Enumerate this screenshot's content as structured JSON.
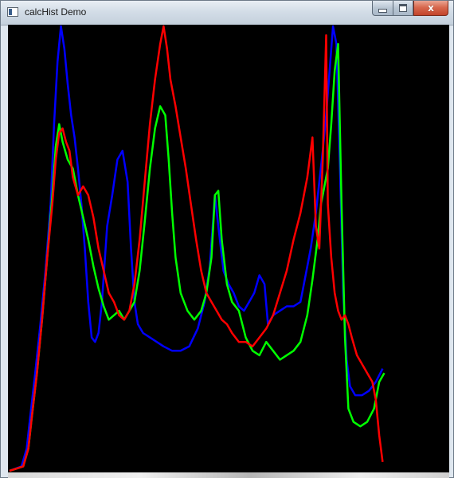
{
  "window": {
    "title": "calcHist Demo",
    "icon": "app-window-icon"
  },
  "caption_buttons": {
    "minimize_icon": "minimize-icon",
    "maximize_icon": "maximize-icon",
    "close_icon": "close-icon",
    "close_glyph": "x"
  },
  "colors": {
    "blue": "#0000ff",
    "green": "#00ff00",
    "red": "#ff0000",
    "background": "#000000"
  },
  "chart_data": {
    "type": "line",
    "title": "",
    "xlabel": "",
    "ylabel": "",
    "xlim": [
      0,
      256
    ],
    "ylim": [
      0,
      1
    ],
    "grid": false,
    "legend": "none",
    "series": [
      {
        "color": "#0000ff",
        "points": [
          [
            0,
            0
          ],
          [
            7,
            0.01
          ],
          [
            10,
            0.05
          ],
          [
            12,
            0.12
          ],
          [
            15,
            0.22
          ],
          [
            18,
            0.33
          ],
          [
            21,
            0.45
          ],
          [
            24,
            0.6
          ],
          [
            26,
            0.78
          ],
          [
            28,
            0.92
          ],
          [
            30,
            1.0
          ],
          [
            32,
            0.95
          ],
          [
            34,
            0.87
          ],
          [
            36,
            0.8
          ],
          [
            38,
            0.75
          ],
          [
            40,
            0.68
          ],
          [
            42,
            0.6
          ],
          [
            44,
            0.5
          ],
          [
            46,
            0.38
          ],
          [
            48,
            0.3
          ],
          [
            50,
            0.29
          ],
          [
            52,
            0.31
          ],
          [
            54,
            0.38
          ],
          [
            57,
            0.55
          ],
          [
            60,
            0.62
          ],
          [
            63,
            0.7
          ],
          [
            66,
            0.72
          ],
          [
            69,
            0.65
          ],
          [
            71,
            0.5
          ],
          [
            73,
            0.38
          ],
          [
            75,
            0.33
          ],
          [
            78,
            0.31
          ],
          [
            82,
            0.3
          ],
          [
            86,
            0.29
          ],
          [
            90,
            0.28
          ],
          [
            95,
            0.27
          ],
          [
            100,
            0.27
          ],
          [
            105,
            0.28
          ],
          [
            110,
            0.32
          ],
          [
            114,
            0.38
          ],
          [
            117,
            0.46
          ],
          [
            120,
            0.62
          ],
          [
            122,
            0.55
          ],
          [
            125,
            0.45
          ],
          [
            128,
            0.42
          ],
          [
            131,
            0.4
          ],
          [
            134,
            0.37
          ],
          [
            137,
            0.36
          ],
          [
            140,
            0.38
          ],
          [
            143,
            0.4
          ],
          [
            146,
            0.44
          ],
          [
            149,
            0.42
          ],
          [
            151,
            0.33
          ],
          [
            154,
            0.35
          ],
          [
            158,
            0.36
          ],
          [
            162,
            0.37
          ],
          [
            166,
            0.37
          ],
          [
            170,
            0.38
          ],
          [
            173,
            0.44
          ],
          [
            176,
            0.5
          ],
          [
            179,
            0.58
          ],
          [
            181,
            0.65
          ],
          [
            183,
            0.72
          ],
          [
            185,
            0.8
          ],
          [
            187,
            0.9
          ],
          [
            189,
            1.0
          ],
          [
            191,
            0.96
          ],
          [
            193,
            0.7
          ],
          [
            195,
            0.4
          ],
          [
            197,
            0.25
          ],
          [
            199,
            0.19
          ],
          [
            202,
            0.17
          ],
          [
            206,
            0.17
          ],
          [
            210,
            0.18
          ],
          [
            214,
            0.2
          ],
          [
            218,
            0.23
          ]
        ]
      },
      {
        "color": "#00ff00",
        "points": [
          [
            0,
            0
          ],
          [
            8,
            0.01
          ],
          [
            11,
            0.05
          ],
          [
            13,
            0.12
          ],
          [
            16,
            0.22
          ],
          [
            19,
            0.34
          ],
          [
            22,
            0.48
          ],
          [
            25,
            0.62
          ],
          [
            27,
            0.73
          ],
          [
            29,
            0.78
          ],
          [
            31,
            0.74
          ],
          [
            34,
            0.7
          ],
          [
            37,
            0.68
          ],
          [
            40,
            0.62
          ],
          [
            43,
            0.57
          ],
          [
            46,
            0.52
          ],
          [
            49,
            0.46
          ],
          [
            52,
            0.41
          ],
          [
            55,
            0.37
          ],
          [
            58,
            0.34
          ],
          [
            61,
            0.35
          ],
          [
            64,
            0.36
          ],
          [
            67,
            0.34
          ],
          [
            70,
            0.36
          ],
          [
            73,
            0.38
          ],
          [
            76,
            0.45
          ],
          [
            79,
            0.56
          ],
          [
            82,
            0.68
          ],
          [
            85,
            0.77
          ],
          [
            88,
            0.82
          ],
          [
            91,
            0.8
          ],
          [
            93,
            0.7
          ],
          [
            95,
            0.58
          ],
          [
            97,
            0.48
          ],
          [
            100,
            0.4
          ],
          [
            104,
            0.36
          ],
          [
            108,
            0.34
          ],
          [
            112,
            0.36
          ],
          [
            115,
            0.4
          ],
          [
            118,
            0.48
          ],
          [
            120,
            0.62
          ],
          [
            122,
            0.63
          ],
          [
            124,
            0.52
          ],
          [
            127,
            0.42
          ],
          [
            130,
            0.38
          ],
          [
            134,
            0.36
          ],
          [
            138,
            0.3
          ],
          [
            142,
            0.27
          ],
          [
            146,
            0.26
          ],
          [
            150,
            0.29
          ],
          [
            154,
            0.27
          ],
          [
            158,
            0.25
          ],
          [
            162,
            0.26
          ],
          [
            166,
            0.27
          ],
          [
            170,
            0.29
          ],
          [
            174,
            0.35
          ],
          [
            177,
            0.43
          ],
          [
            180,
            0.52
          ],
          [
            182,
            0.6
          ],
          [
            184,
            0.64
          ],
          [
            186,
            0.68
          ],
          [
            188,
            0.78
          ],
          [
            190,
            0.9
          ],
          [
            192,
            0.96
          ],
          [
            194,
            0.6
          ],
          [
            196,
            0.3
          ],
          [
            198,
            0.14
          ],
          [
            201,
            0.11
          ],
          [
            205,
            0.1
          ],
          [
            209,
            0.11
          ],
          [
            213,
            0.14
          ],
          [
            216,
            0.2
          ],
          [
            219,
            0.22
          ]
        ]
      },
      {
        "color": "#ff0000",
        "points": [
          [
            0,
            0
          ],
          [
            8,
            0.01
          ],
          [
            11,
            0.05
          ],
          [
            13,
            0.12
          ],
          [
            16,
            0.22
          ],
          [
            19,
            0.34
          ],
          [
            22,
            0.48
          ],
          [
            25,
            0.6
          ],
          [
            27,
            0.7
          ],
          [
            29,
            0.76
          ],
          [
            31,
            0.77
          ],
          [
            33,
            0.74
          ],
          [
            35,
            0.72
          ],
          [
            37,
            0.66
          ],
          [
            40,
            0.62
          ],
          [
            43,
            0.64
          ],
          [
            46,
            0.62
          ],
          [
            49,
            0.57
          ],
          [
            52,
            0.5
          ],
          [
            55,
            0.45
          ],
          [
            58,
            0.4
          ],
          [
            61,
            0.38
          ],
          [
            64,
            0.35
          ],
          [
            67,
            0.34
          ],
          [
            70,
            0.36
          ],
          [
            73,
            0.42
          ],
          [
            76,
            0.52
          ],
          [
            79,
            0.65
          ],
          [
            82,
            0.78
          ],
          [
            85,
            0.88
          ],
          [
            88,
            0.96
          ],
          [
            90,
            1.0
          ],
          [
            92,
            0.95
          ],
          [
            94,
            0.88
          ],
          [
            97,
            0.82
          ],
          [
            100,
            0.75
          ],
          [
            103,
            0.68
          ],
          [
            106,
            0.6
          ],
          [
            109,
            0.52
          ],
          [
            112,
            0.45
          ],
          [
            115,
            0.4
          ],
          [
            118,
            0.38
          ],
          [
            121,
            0.36
          ],
          [
            124,
            0.34
          ],
          [
            127,
            0.33
          ],
          [
            130,
            0.31
          ],
          [
            134,
            0.29
          ],
          [
            138,
            0.29
          ],
          [
            142,
            0.28
          ],
          [
            146,
            0.3
          ],
          [
            150,
            0.32
          ],
          [
            154,
            0.35
          ],
          [
            158,
            0.4
          ],
          [
            162,
            0.45
          ],
          [
            166,
            0.52
          ],
          [
            170,
            0.58
          ],
          [
            174,
            0.66
          ],
          [
            177,
            0.75
          ],
          [
            179,
            0.55
          ],
          [
            181,
            0.5
          ],
          [
            183,
            0.7
          ],
          [
            185,
            0.98
          ],
          [
            186,
            0.6
          ],
          [
            188,
            0.48
          ],
          [
            190,
            0.4
          ],
          [
            192,
            0.36
          ],
          [
            194,
            0.34
          ],
          [
            196,
            0.35
          ],
          [
            198,
            0.33
          ],
          [
            200,
            0.3
          ],
          [
            203,
            0.26
          ],
          [
            206,
            0.24
          ],
          [
            209,
            0.22
          ],
          [
            212,
            0.2
          ],
          [
            214,
            0.16
          ],
          [
            216,
            0.08
          ],
          [
            218,
            0.02
          ]
        ]
      }
    ]
  }
}
